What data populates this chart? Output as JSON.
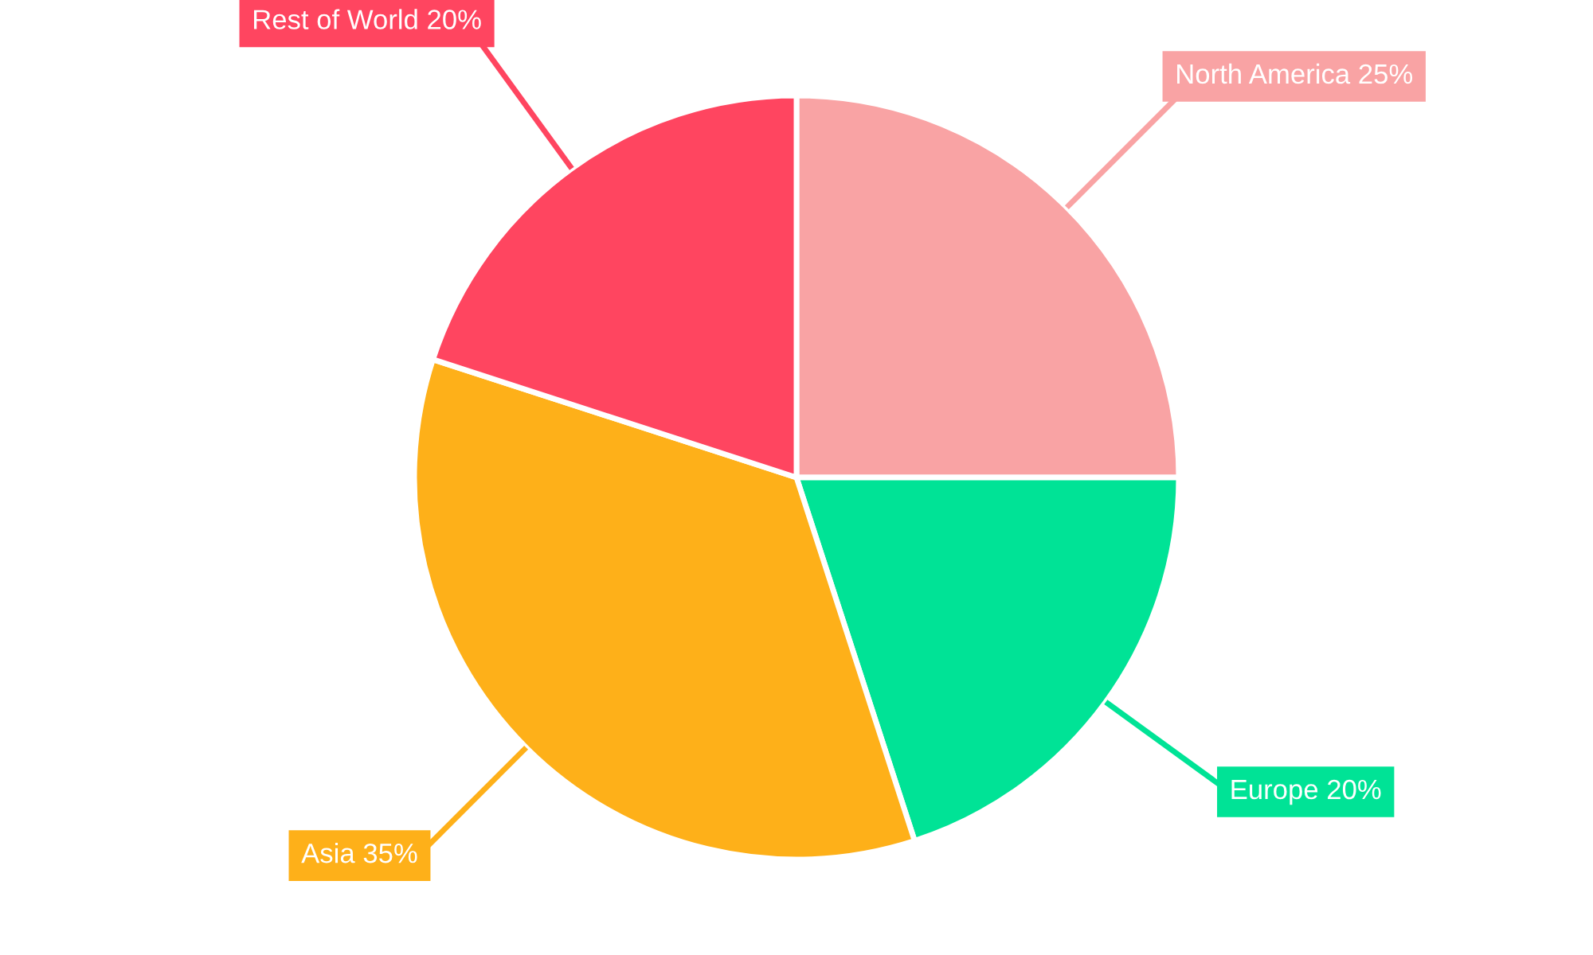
{
  "chart_data": {
    "type": "pie",
    "categories": [
      "North America",
      "Europe",
      "Asia",
      "Rest of World"
    ],
    "values": [
      25,
      20,
      35,
      20
    ],
    "value_labels": [
      "25%",
      "20%",
      "35%",
      "20%"
    ],
    "colors": [
      "#f9a3a4",
      "#00e396",
      "#feb019",
      "#ff4560"
    ],
    "legend": false
  }
}
